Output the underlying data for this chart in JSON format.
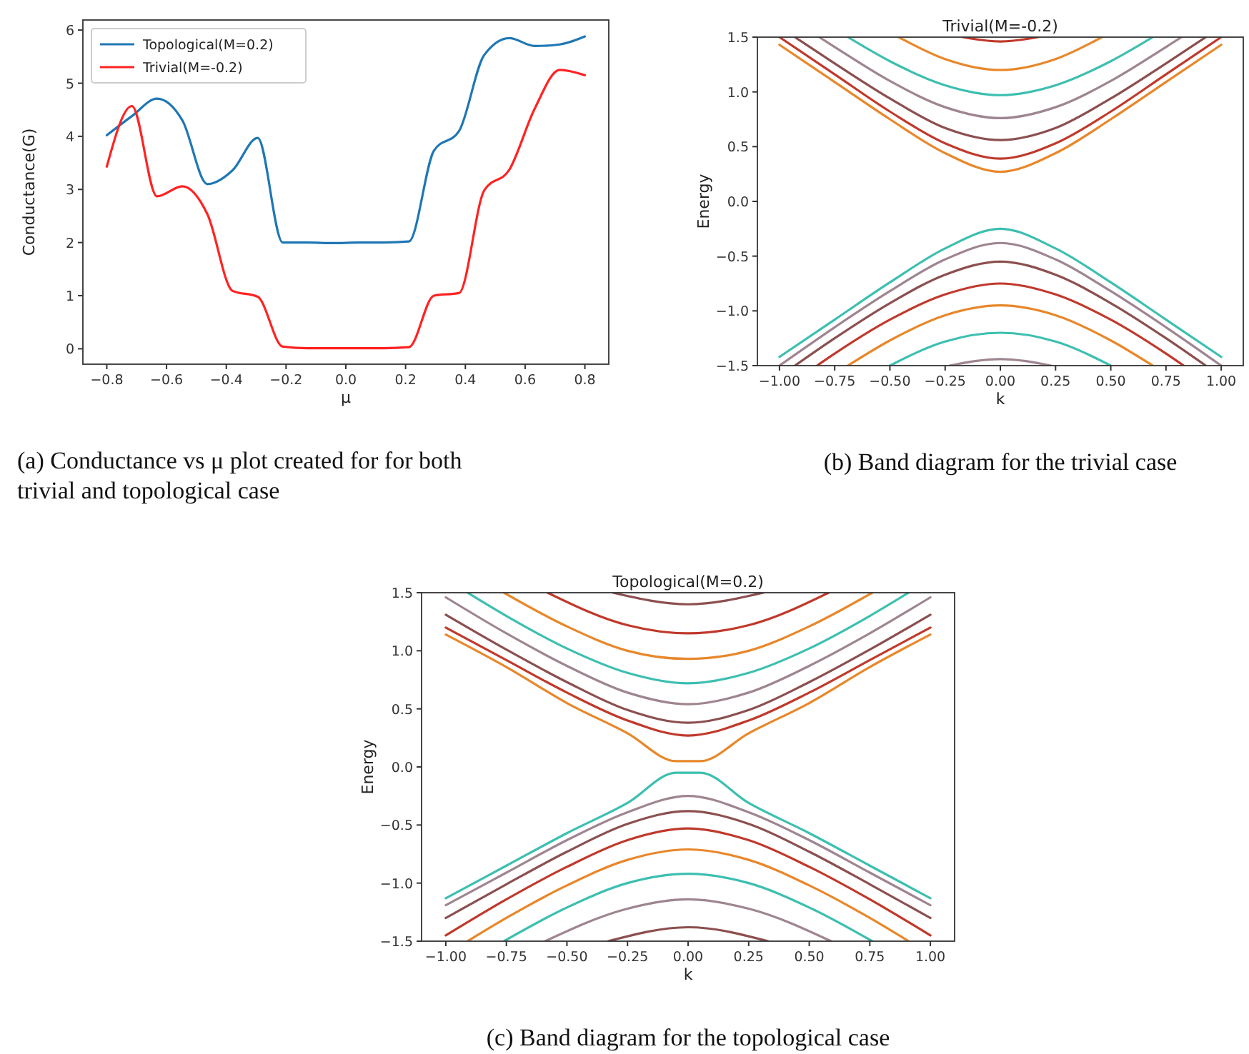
{
  "chart_data": [
    {
      "type": "line",
      "xlabel": "μ",
      "ylabel": "Conductance(G)",
      "xlim": [
        -0.88,
        0.88
      ],
      "ylim": [
        -0.29,
        6.19
      ],
      "xticks": [
        {
          "value": -0.8,
          "label": "−0.8"
        },
        {
          "value": -0.6,
          "label": "−0.6"
        },
        {
          "value": -0.4,
          "label": "−0.4"
        },
        {
          "value": -0.2,
          "label": "−0.2"
        },
        {
          "value": 0,
          "label": "0.0"
        },
        {
          "value": 0.2,
          "label": "0.2"
        },
        {
          "value": 0.4,
          "label": "0.4"
        },
        {
          "value": 0.6,
          "label": "0.6"
        },
        {
          "value": 0.8,
          "label": "0.8"
        }
      ],
      "yticks": [
        0,
        1,
        2,
        3,
        4,
        5,
        6
      ],
      "legend": "top left",
      "grid": false,
      "x": [
        -0.8,
        -0.716,
        -0.632,
        -0.547,
        -0.463,
        -0.379,
        -0.295,
        -0.211,
        -0.126,
        -0.042,
        0.042,
        0.126,
        0.211,
        0.295,
        0.379,
        0.463,
        0.547,
        0.632,
        0.716,
        0.8
      ],
      "series": [
        {
          "name": "Topological(M=0.2)",
          "color": "#1f77b4",
          "values": [
            4.02,
            4.38,
            4.71,
            4.3,
            3.1,
            3.36,
            3.97,
            2.0,
            2.0,
            1.99,
            2.0,
            2.0,
            2.02,
            3.73,
            4.1,
            5.53,
            5.85,
            5.7,
            5.73,
            5.88
          ]
        },
        {
          "name": "Trivial(M=-0.2)",
          "color": "#ff2222",
          "values": [
            3.43,
            4.57,
            2.87,
            3.06,
            2.53,
            1.09,
            0.98,
            0.04,
            0.01,
            0.01,
            0.01,
            0.01,
            0.03,
            1.0,
            1.05,
            2.98,
            3.37,
            4.52,
            5.25,
            5.15
          ]
        }
      ],
      "annotations": [
        "(a) Conductance vs μ plot created for for both trivial and topological case"
      ]
    },
    {
      "type": "line",
      "title": "Trivial(M=-0.2)",
      "xlabel": "k",
      "ylabel": "Energy",
      "xlim": [
        -1.1,
        1.1
      ],
      "ylim": [
        -1.5,
        1.5
      ],
      "xticks": [
        {
          "value": -1,
          "label": "−1.00"
        },
        {
          "value": -0.75,
          "label": "−0.75"
        },
        {
          "value": -0.5,
          "label": "−0.50"
        },
        {
          "value": -0.25,
          "label": "−0.25"
        },
        {
          "value": 0,
          "label": "0.00"
        },
        {
          "value": 0.25,
          "label": "0.25"
        },
        {
          "value": 0.5,
          "label": "0.50"
        },
        {
          "value": 0.75,
          "label": "0.75"
        },
        {
          "value": 1,
          "label": "1.00"
        }
      ],
      "yticks": [
        {
          "value": -1.5,
          "label": "−1.5"
        },
        {
          "value": -1,
          "label": "−1.0"
        },
        {
          "value": -0.5,
          "label": "−0.5"
        },
        {
          "value": 0,
          "label": "0.0"
        },
        {
          "value": 0.5,
          "label": "0.5"
        },
        {
          "value": 1,
          "label": "1.0"
        },
        {
          "value": 1.5,
          "label": "1.5"
        }
      ],
      "grid": false,
      "series": [
        {
          "color": "#e8872a",
          "x": [
            -1,
            -0.75,
            -0.5,
            -0.25,
            0,
            0.25,
            0.5,
            0.75,
            1
          ],
          "values": [
            1.43,
            1.09,
            0.75,
            0.44,
            0.27,
            0.44,
            0.75,
            1.09,
            1.43
          ]
        },
        {
          "color": "#c0392b",
          "x": [
            -1,
            -0.75,
            -0.5,
            -0.25,
            0,
            0.25,
            0.5,
            0.75,
            1
          ],
          "values": [
            1.5,
            1.16,
            0.82,
            0.53,
            0.39,
            0.53,
            0.82,
            1.16,
            1.5
          ]
        },
        {
          "color": "#8c4f4f",
          "x": [
            -0.93,
            -0.75,
            -0.5,
            -0.25,
            0,
            0.25,
            0.5,
            0.75,
            0.93
          ],
          "values": [
            1.5,
            1.26,
            0.94,
            0.67,
            0.56,
            0.67,
            0.94,
            1.26,
            1.5
          ]
        },
        {
          "color": "#9e8591",
          "x": [
            -0.82,
            -0.75,
            -0.5,
            -0.25,
            0,
            0.25,
            0.5,
            0.75,
            0.82
          ],
          "values": [
            1.5,
            1.41,
            1.1,
            0.86,
            0.76,
            0.86,
            1.1,
            1.41,
            1.5
          ]
        },
        {
          "color": "#3cbfb0",
          "x": [
            -0.69,
            -0.5,
            -0.25,
            0,
            0.25,
            0.5,
            0.69
          ],
          "values": [
            1.5,
            1.28,
            1.06,
            0.97,
            1.06,
            1.28,
            1.5
          ]
        },
        {
          "color": "#e8872a",
          "x": [
            -0.46,
            -0.25,
            0,
            0.25,
            0.46
          ],
          "values": [
            1.5,
            1.3,
            1.2,
            1.3,
            1.5
          ]
        },
        {
          "color": "#c0392b",
          "x": [
            -0.17,
            0,
            0.17
          ],
          "values": [
            1.5,
            1.46,
            1.5
          ]
        },
        {
          "color": "#3cbfb0",
          "x": [
            -1,
            -0.75,
            -0.5,
            -0.25,
            0,
            0.25,
            0.5,
            0.75,
            1
          ],
          "values": [
            -1.42,
            -1.08,
            -0.74,
            -0.43,
            -0.25,
            -0.43,
            -0.74,
            -1.08,
            -1.42
          ]
        },
        {
          "color": "#9e8591",
          "x": [
            -1,
            -0.75,
            -0.5,
            -0.25,
            0,
            0.25,
            0.5,
            0.75,
            1
          ],
          "values": [
            -1.5,
            -1.15,
            -0.82,
            -0.53,
            -0.38,
            -0.53,
            -0.82,
            -1.15,
            -1.5
          ]
        },
        {
          "color": "#8c4f4f",
          "x": [
            -0.93,
            -0.75,
            -0.5,
            -0.25,
            0,
            0.25,
            0.5,
            0.75,
            0.93
          ],
          "values": [
            -1.5,
            -1.25,
            -0.93,
            -0.67,
            -0.55,
            -0.67,
            -0.93,
            -1.25,
            -1.5
          ]
        },
        {
          "color": "#c0392b",
          "x": [
            -0.83,
            -0.75,
            -0.5,
            -0.25,
            0,
            0.25,
            0.5,
            0.75,
            0.83
          ],
          "values": [
            -1.5,
            -1.39,
            -1.08,
            -0.85,
            -0.75,
            -0.85,
            -1.08,
            -1.39,
            -1.5
          ]
        },
        {
          "color": "#e8872a",
          "x": [
            -0.69,
            -0.5,
            -0.25,
            0,
            0.25,
            0.5,
            0.69
          ],
          "values": [
            -1.5,
            -1.27,
            -1.04,
            -0.95,
            -1.04,
            -1.27,
            -1.5
          ]
        },
        {
          "color": "#3cbfb0",
          "x": [
            -0.5,
            -0.25,
            0,
            0.25,
            0.5
          ],
          "values": [
            -1.5,
            -1.28,
            -1.2,
            -1.28,
            -1.5
          ]
        },
        {
          "color": "#9e8591",
          "x": [
            -0.23,
            0,
            0.23
          ],
          "values": [
            -1.5,
            -1.44,
            -1.5
          ]
        }
      ],
      "annotations": [
        "(b) Band diagram for the trivial case"
      ]
    },
    {
      "type": "line",
      "title": "Topological(M=0.2)",
      "xlabel": "k",
      "ylabel": "Energy",
      "xlim": [
        -1.1,
        1.1
      ],
      "ylim": [
        -1.5,
        1.5
      ],
      "xticks": [
        {
          "value": -1,
          "label": "−1.00"
        },
        {
          "value": -0.75,
          "label": "−0.75"
        },
        {
          "value": -0.5,
          "label": "−0.50"
        },
        {
          "value": -0.25,
          "label": "−0.25"
        },
        {
          "value": 0,
          "label": "0.00"
        },
        {
          "value": 0.25,
          "label": "0.25"
        },
        {
          "value": 0.5,
          "label": "0.50"
        },
        {
          "value": 0.75,
          "label": "0.75"
        },
        {
          "value": 1,
          "label": "1.00"
        }
      ],
      "yticks": [
        {
          "value": -1.5,
          "label": "−1.5"
        },
        {
          "value": -1,
          "label": "−1.0"
        },
        {
          "value": -0.5,
          "label": "−0.5"
        },
        {
          "value": 0,
          "label": "0.0"
        },
        {
          "value": 0.5,
          "label": "0.5"
        },
        {
          "value": 1,
          "label": "1.0"
        },
        {
          "value": 1.5,
          "label": "1.5"
        }
      ],
      "grid": false,
      "series": [
        {
          "color": "#e8872a",
          "x": [
            -1,
            -0.75,
            -0.5,
            -0.25,
            -0.05,
            0.05,
            0.25,
            0.5,
            0.75,
            1
          ],
          "values": [
            1.14,
            0.86,
            0.55,
            0.29,
            0.05,
            0.05,
            0.29,
            0.55,
            0.86,
            1.14
          ]
        },
        {
          "color": "#c0392b",
          "x": [
            -1,
            -0.75,
            -0.5,
            -0.25,
            0,
            0.25,
            0.5,
            0.75,
            1
          ],
          "values": [
            1.2,
            0.92,
            0.64,
            0.4,
            0.27,
            0.4,
            0.64,
            0.92,
            1.2
          ]
        },
        {
          "color": "#8c4f4f",
          "x": [
            -1,
            -0.75,
            -0.5,
            -0.25,
            0,
            0.25,
            0.5,
            0.75,
            1
          ],
          "values": [
            1.31,
            1.01,
            0.73,
            0.49,
            0.38,
            0.49,
            0.73,
            1.01,
            1.31
          ]
        },
        {
          "color": "#9e8591",
          "x": [
            -1,
            -0.75,
            -0.5,
            -0.25,
            0,
            0.25,
            0.5,
            0.75,
            1
          ],
          "values": [
            1.46,
            1.15,
            0.87,
            0.64,
            0.54,
            0.64,
            0.87,
            1.15,
            1.46
          ]
        },
        {
          "color": "#3cbfb0",
          "x": [
            -0.91,
            -0.75,
            -0.5,
            -0.25,
            0,
            0.25,
            0.5,
            0.75,
            0.91
          ],
          "values": [
            1.5,
            1.3,
            1.02,
            0.81,
            0.72,
            0.81,
            1.02,
            1.3,
            1.5
          ]
        },
        {
          "color": "#e8872a",
          "x": [
            -0.76,
            -0.5,
            -0.25,
            0,
            0.25,
            0.5,
            0.76
          ],
          "values": [
            1.5,
            1.21,
            1.0,
            0.93,
            1.0,
            1.21,
            1.5
          ]
        },
        {
          "color": "#c0392b",
          "x": [
            -0.58,
            -0.25,
            0,
            0.25,
            0.58
          ],
          "values": [
            1.5,
            1.22,
            1.15,
            1.22,
            1.5
          ]
        },
        {
          "color": "#8c4f4f",
          "x": [
            -0.31,
            0,
            0.31
          ],
          "values": [
            1.5,
            1.4,
            1.5
          ]
        },
        {
          "color": "#3cbfb0",
          "x": [
            -1,
            -0.75,
            -0.5,
            -0.25,
            -0.05,
            0.05,
            0.25,
            0.5,
            0.75,
            1
          ],
          "values": [
            -1.13,
            -0.85,
            -0.57,
            -0.31,
            -0.05,
            -0.05,
            -0.31,
            -0.57,
            -0.85,
            -1.13
          ]
        },
        {
          "color": "#9e8591",
          "x": [
            -1,
            -0.75,
            -0.5,
            -0.25,
            0,
            0.25,
            0.5,
            0.75,
            1
          ],
          "values": [
            -1.19,
            -0.91,
            -0.63,
            -0.39,
            -0.25,
            -0.39,
            -0.63,
            -0.91,
            -1.19
          ]
        },
        {
          "color": "#8c4f4f",
          "x": [
            -1,
            -0.75,
            -0.5,
            -0.25,
            0,
            0.25,
            0.5,
            0.75,
            1
          ],
          "values": [
            -1.3,
            -1.01,
            -0.73,
            -0.49,
            -0.38,
            -0.49,
            -0.73,
            -1.01,
            -1.3
          ]
        },
        {
          "color": "#c0392b",
          "x": [
            -1,
            -0.75,
            -0.5,
            -0.25,
            0,
            0.25,
            0.5,
            0.75,
            1
          ],
          "values": [
            -1.45,
            -1.14,
            -0.86,
            -0.63,
            -0.53,
            -0.63,
            -0.86,
            -1.14,
            -1.45
          ]
        },
        {
          "color": "#e8872a",
          "x": [
            -0.91,
            -0.75,
            -0.5,
            -0.25,
            0,
            0.25,
            0.5,
            0.75,
            0.91
          ],
          "values": [
            -1.5,
            -1.3,
            -1.02,
            -0.8,
            -0.71,
            -0.8,
            -1.02,
            -1.3,
            -1.5
          ]
        },
        {
          "color": "#3cbfb0",
          "x": [
            -0.76,
            -0.5,
            -0.25,
            0,
            0.25,
            0.5,
            0.76
          ],
          "values": [
            -1.5,
            -1.21,
            -1.0,
            -0.92,
            -1.0,
            -1.21,
            -1.5
          ]
        },
        {
          "color": "#9e8591",
          "x": [
            -0.59,
            -0.25,
            0,
            0.25,
            0.59
          ],
          "values": [
            -1.5,
            -1.22,
            -1.14,
            -1.22,
            -1.5
          ]
        },
        {
          "color": "#8c4f4f",
          "x": [
            -0.33,
            0,
            0.33
          ],
          "values": [
            -1.5,
            -1.38,
            -1.5
          ]
        }
      ],
      "annotations": [
        "(c) Band diagram for the topological case"
      ]
    }
  ]
}
